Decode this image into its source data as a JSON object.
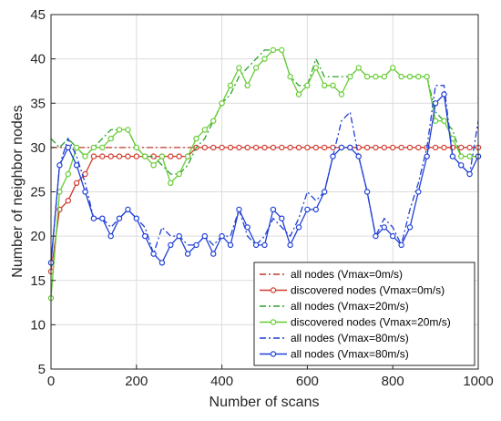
{
  "chart_data": {
    "type": "line",
    "xlabel": "Number of scans",
    "ylabel": "Number of neighbor nodes",
    "xlim": [
      0,
      1000
    ],
    "ylim": [
      5,
      45
    ],
    "xticks": [
      0,
      200,
      400,
      600,
      800,
      1000
    ],
    "yticks": [
      5,
      10,
      15,
      20,
      25,
      30,
      35,
      40,
      45
    ],
    "grid": true,
    "legend_position": "bottom-right",
    "series": [
      {
        "name": "all nodes (Vmax=0m/s)",
        "color": "#c0392b",
        "dash": "dashdot",
        "marker": "none",
        "x": [
          0,
          1000
        ],
        "y": [
          30,
          30
        ]
      },
      {
        "name": "discovered nodes (Vmax=0m/s)",
        "color": "#d13a2c",
        "dash": "solid",
        "marker": "circle",
        "x": [
          0,
          20,
          40,
          60,
          80,
          100,
          120,
          140,
          160,
          180,
          200,
          220,
          240,
          260,
          280,
          300,
          320,
          340,
          360,
          380,
          400,
          420,
          440,
          460,
          480,
          500,
          520,
          540,
          560,
          580,
          600,
          620,
          640,
          660,
          680,
          700,
          720,
          740,
          760,
          780,
          800,
          820,
          840,
          860,
          880,
          900,
          920,
          940,
          960,
          980,
          1000
        ],
        "y": [
          16,
          23,
          24,
          26,
          27,
          29,
          29,
          29,
          29,
          29,
          29,
          29,
          29,
          29,
          29,
          29,
          29,
          30,
          30,
          30,
          30,
          30,
          30,
          30,
          30,
          30,
          30,
          30,
          30,
          30,
          30,
          30,
          30,
          30,
          30,
          30,
          30,
          30,
          30,
          30,
          30,
          30,
          30,
          30,
          30,
          30,
          30,
          30,
          30,
          30,
          30
        ]
      },
      {
        "name": "all nodes (Vmax=20m/s)",
        "color": "#2ca02c",
        "dash": "dashdot",
        "marker": "none",
        "x": [
          0,
          20,
          40,
          60,
          80,
          100,
          120,
          140,
          160,
          180,
          200,
          220,
          240,
          260,
          280,
          300,
          320,
          340,
          360,
          380,
          400,
          420,
          440,
          460,
          480,
          500,
          520,
          540,
          560,
          580,
          600,
          620,
          640,
          660,
          680,
          700,
          720,
          740,
          760,
          780,
          800,
          820,
          840,
          860,
          880,
          900,
          920,
          940,
          960,
          980,
          1000
        ],
        "y": [
          31,
          30,
          31,
          30,
          29,
          30,
          31,
          32,
          32,
          32,
          30,
          29,
          29,
          28,
          27,
          27,
          28,
          30,
          31,
          33,
          35,
          36,
          38,
          39,
          40,
          41,
          41,
          41,
          38,
          37,
          37,
          40,
          38,
          38,
          38,
          38,
          39,
          38,
          38,
          38,
          39,
          38,
          38,
          38,
          38,
          34,
          33,
          32,
          29,
          29,
          29
        ]
      },
      {
        "name": "discovered nodes (Vmax=20m/s)",
        "color": "#66cc33",
        "dash": "solid",
        "marker": "circle",
        "x": [
          0,
          20,
          40,
          60,
          80,
          100,
          120,
          140,
          160,
          180,
          200,
          220,
          240,
          260,
          280,
          300,
          320,
          340,
          360,
          380,
          400,
          420,
          440,
          460,
          480,
          500,
          520,
          540,
          560,
          580,
          600,
          620,
          640,
          660,
          680,
          700,
          720,
          740,
          760,
          780,
          800,
          820,
          840,
          860,
          880,
          900,
          920,
          940,
          960,
          980,
          1000
        ],
        "y": [
          13,
          25,
          27,
          30,
          29,
          30,
          30,
          31,
          32,
          32,
          30,
          29,
          28,
          29,
          26,
          27,
          29,
          31,
          32,
          33,
          35,
          37,
          39,
          37,
          39,
          40,
          41,
          41,
          38,
          36,
          37,
          39,
          37,
          37,
          36,
          38,
          39,
          38,
          38,
          38,
          39,
          38,
          38,
          38,
          38,
          33,
          33,
          31,
          29,
          29,
          29
        ]
      },
      {
        "name": "all nodes (Vmax=80m/s)",
        "color": "#1f3fd6",
        "dash": "dashdot",
        "marker": "none",
        "x": [
          0,
          20,
          40,
          60,
          80,
          100,
          120,
          140,
          160,
          180,
          200,
          220,
          240,
          260,
          280,
          300,
          320,
          340,
          360,
          380,
          400,
          420,
          440,
          460,
          480,
          500,
          520,
          540,
          560,
          580,
          600,
          620,
          640,
          660,
          680,
          700,
          720,
          740,
          760,
          780,
          800,
          820,
          840,
          860,
          880,
          900,
          920,
          940,
          960,
          980,
          1000
        ],
        "y": [
          17,
          28,
          31,
          29,
          26,
          22,
          22,
          21,
          22,
          23,
          22,
          21,
          18,
          21,
          20,
          20,
          19,
          19,
          20,
          19,
          20,
          20,
          23,
          20,
          19,
          20,
          22,
          21,
          20,
          22,
          25,
          24,
          25,
          29,
          33,
          34,
          29,
          25,
          20,
          22,
          21,
          19,
          23,
          26,
          30,
          37,
          37,
          29,
          28,
          27,
          33
        ]
      },
      {
        "name": "all nodes (Vmax=80m/s)",
        "color": "#1f3fd6",
        "dash": "solid",
        "marker": "circle",
        "x": [
          0,
          20,
          40,
          60,
          80,
          100,
          120,
          140,
          160,
          180,
          200,
          220,
          240,
          260,
          280,
          300,
          320,
          340,
          360,
          380,
          400,
          420,
          440,
          460,
          480,
          500,
          520,
          540,
          560,
          580,
          600,
          620,
          640,
          660,
          680,
          700,
          720,
          740,
          760,
          780,
          800,
          820,
          840,
          860,
          880,
          900,
          920,
          940,
          960,
          980,
          1000
        ],
        "y": [
          17,
          28,
          30,
          28,
          25,
          22,
          22,
          20,
          22,
          23,
          22,
          20,
          18,
          17,
          19,
          20,
          18,
          19,
          20,
          18,
          20,
          19,
          23,
          21,
          19,
          19,
          23,
          22,
          19,
          21,
          23,
          23,
          25,
          29,
          30,
          30,
          29,
          25,
          20,
          21,
          20,
          19,
          21,
          25,
          29,
          35,
          36,
          29,
          28,
          27,
          29
        ]
      }
    ]
  }
}
